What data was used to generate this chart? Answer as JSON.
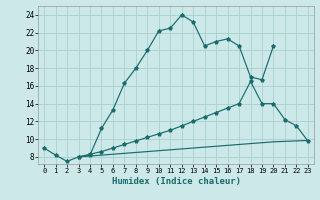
{
  "xlabel": "Humidex (Indice chaleur)",
  "bg_color": "#cce8e8",
  "grid_color": "#a8d0d0",
  "line_color": "#1a6b6b",
  "xlim": [
    -0.5,
    23.5
  ],
  "ylim": [
    7.2,
    25.0
  ],
  "xticks": [
    0,
    1,
    2,
    3,
    4,
    5,
    6,
    7,
    8,
    9,
    10,
    11,
    12,
    13,
    14,
    15,
    16,
    17,
    18,
    19,
    20,
    21,
    22,
    23
  ],
  "yticks": [
    8,
    10,
    12,
    14,
    16,
    18,
    20,
    22,
    24
  ],
  "curve1_x": [
    0,
    1,
    2,
    3,
    4,
    5,
    6,
    7,
    8,
    9,
    10,
    11,
    12,
    13,
    14,
    15,
    16,
    17,
    18,
    19,
    20
  ],
  "curve1_y": [
    9.0,
    8.2,
    7.5,
    8.0,
    8.2,
    11.2,
    13.3,
    16.3,
    18.0,
    20.0,
    22.2,
    22.5,
    24.0,
    23.2,
    20.5,
    21.0,
    21.3,
    20.5,
    17.0,
    16.7,
    20.5
  ],
  "curve2_x": [
    3,
    4,
    5,
    6,
    7,
    8,
    9,
    10,
    11,
    12,
    13,
    14,
    15,
    16,
    17,
    18,
    19,
    20,
    21,
    22,
    23
  ],
  "curve2_y": [
    8.0,
    8.3,
    8.6,
    9.0,
    9.4,
    9.8,
    10.2,
    10.6,
    11.0,
    11.5,
    12.0,
    12.5,
    13.0,
    13.5,
    14.0,
    16.5,
    14.0,
    14.0,
    12.2,
    11.5,
    9.8
  ],
  "curve3_x": [
    3,
    4,
    5,
    6,
    7,
    8,
    9,
    10,
    11,
    12,
    13,
    14,
    15,
    16,
    17,
    18,
    19,
    20,
    21,
    22,
    23
  ],
  "curve3_y": [
    8.0,
    8.1,
    8.2,
    8.3,
    8.4,
    8.5,
    8.6,
    8.7,
    8.8,
    8.9,
    9.0,
    9.1,
    9.2,
    9.3,
    9.4,
    9.5,
    9.6,
    9.7,
    9.75,
    9.8,
    9.85
  ]
}
